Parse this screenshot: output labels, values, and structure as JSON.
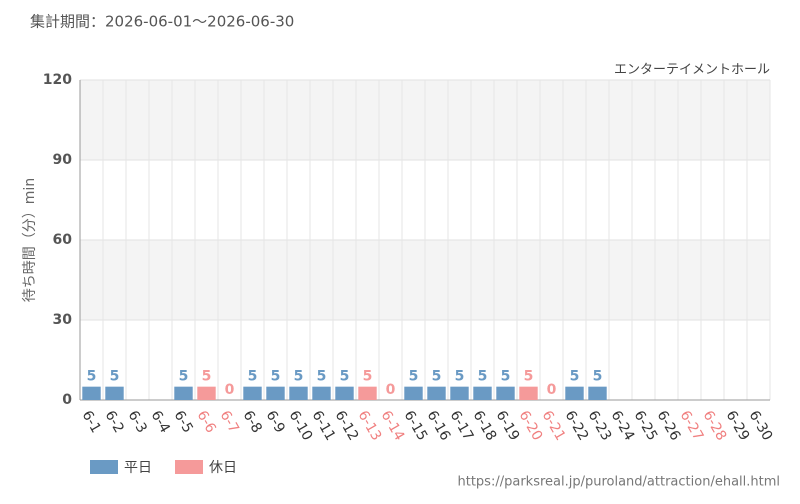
{
  "header": {
    "period": "集計期間：2026-06-01～2026-06-30"
  },
  "footer": {
    "url": "https://parksreal.jp/puroland/attraction/ehall.html"
  },
  "chart_data": {
    "type": "bar",
    "subtitle": "エンターテイメントホール",
    "y_label": "待ち時間（分）min",
    "categories": [
      "6-1",
      "6-2",
      "6-3",
      "6-4",
      "6-5",
      "6-6",
      "6-7",
      "6-8",
      "6-9",
      "6-10",
      "6-11",
      "6-12",
      "6-13",
      "6-14",
      "6-15",
      "6-16",
      "6-17",
      "6-18",
      "6-19",
      "6-20",
      "6-21",
      "6-22",
      "6-23",
      "6-24",
      "6-25",
      "6-26",
      "6-27",
      "6-28",
      "6-29",
      "6-30"
    ],
    "category_colors": [
      "#333",
      "#333",
      "#333",
      "#333",
      "#333",
      "#f08080",
      "#f08080",
      "#333",
      "#333",
      "#333",
      "#333",
      "#333",
      "#f08080",
      "#f08080",
      "#333",
      "#333",
      "#333",
      "#333",
      "#333",
      "#f08080",
      "#f08080",
      "#333",
      "#333",
      "#333",
      "#333",
      "#333",
      "#f08080",
      "#f08080",
      "#333",
      "#333"
    ],
    "series": [
      {
        "name": "平日",
        "color": "#6a9ac4",
        "values": [
          5,
          5,
          null,
          null,
          5,
          null,
          null,
          5,
          5,
          5,
          5,
          5,
          null,
          null,
          5,
          5,
          5,
          5,
          5,
          null,
          null,
          5,
          5,
          null,
          null,
          null,
          null,
          null,
          null,
          null
        ]
      },
      {
        "name": "休日",
        "color": "#f59a9a",
        "values": [
          null,
          null,
          null,
          null,
          null,
          5,
          0,
          null,
          null,
          null,
          null,
          null,
          5,
          0,
          null,
          null,
          null,
          null,
          null,
          5,
          0,
          null,
          null,
          null,
          null,
          null,
          null,
          null,
          null,
          null
        ]
      }
    ],
    "ylim": [
      0,
      120
    ],
    "yticks": [
      0,
      30,
      60,
      90,
      120
    ],
    "grid": true,
    "legend": "bottom-left"
  }
}
